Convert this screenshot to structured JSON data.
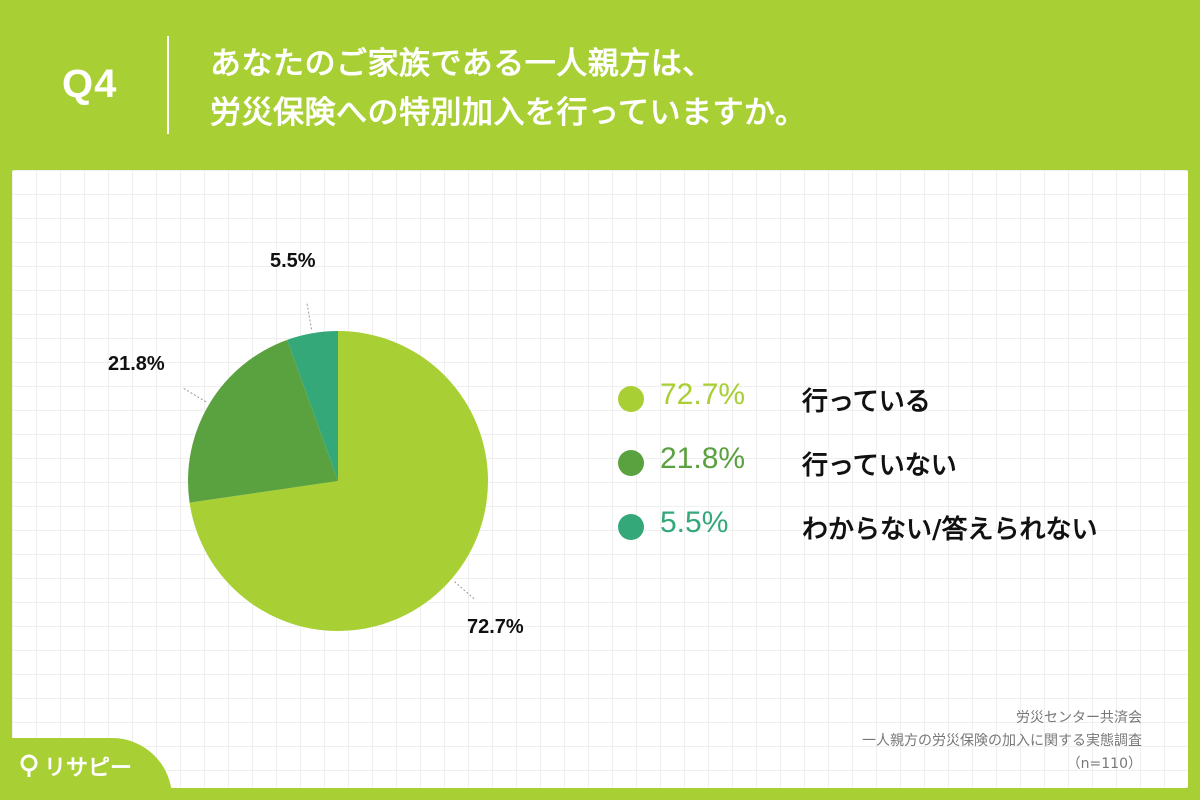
{
  "header": {
    "question": "Q4",
    "title_line1": "あなたのご家族である一人親方は、",
    "title_line2": "労災保険への特別加入を行っていますか。"
  },
  "chart_data": {
    "type": "pie",
    "categories": [
      "行っている",
      "行っていない",
      "わからない/答えられない"
    ],
    "values": [
      72.7,
      21.8,
      5.5
    ],
    "value_labels": [
      "72.7%",
      "21.8%",
      "5.5%"
    ],
    "colors": [
      "#a8cf33",
      "#5aa13f",
      "#35a87a"
    ],
    "start": "12 o'clock, clockwise",
    "legend_placement": "right"
  },
  "source": {
    "org": "労災センター共済会",
    "survey": "一人親方の労災保険の加入に関する実態調査",
    "sample": "（n=110）"
  },
  "logo": {
    "text": "リサピー"
  }
}
